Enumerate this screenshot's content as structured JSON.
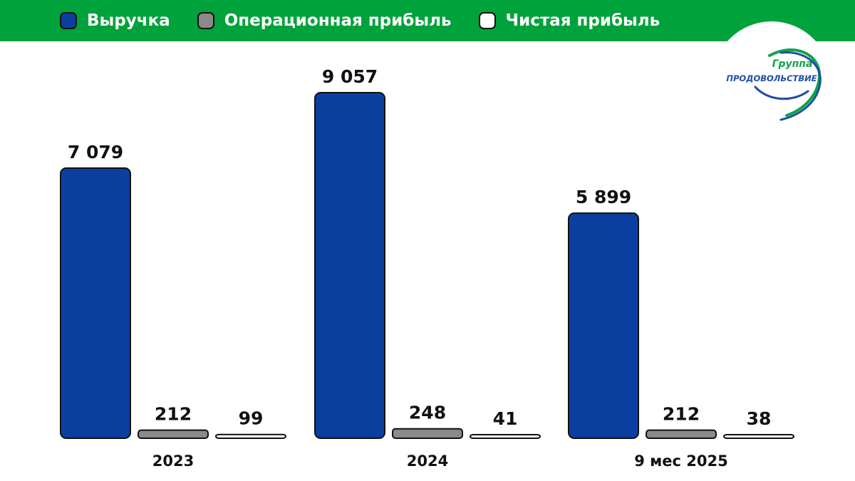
{
  "header": {
    "background_color": "#00a23c"
  },
  "logo": {
    "text_top": "Группа",
    "text_main": "ПРОДОВОЛЬСТВИЕ",
    "green": "#0fa34a",
    "blue": "#1f4ea3"
  },
  "chart_data": {
    "type": "bar",
    "categories": [
      "2023",
      "2024",
      "9 мес 2025"
    ],
    "series": [
      {
        "name": "Выручка",
        "values": [
          7079,
          9057,
          5899
        ],
        "value_labels": [
          "7 079",
          "9 057",
          "5 899"
        ],
        "color": "#0a3fa0"
      },
      {
        "name": "Операционная прибыль",
        "values": [
          212,
          248,
          212
        ],
        "value_labels": [
          "212",
          "248",
          "212"
        ],
        "color": "#8a8a8a"
      },
      {
        "name": "Чистая прибыль",
        "values": [
          99,
          41,
          38
        ],
        "value_labels": [
          "99",
          "41",
          "38"
        ],
        "color": "#ffffff"
      }
    ],
    "ylim": [
      0,
      9057
    ],
    "grid": false,
    "legend_position": "top"
  }
}
